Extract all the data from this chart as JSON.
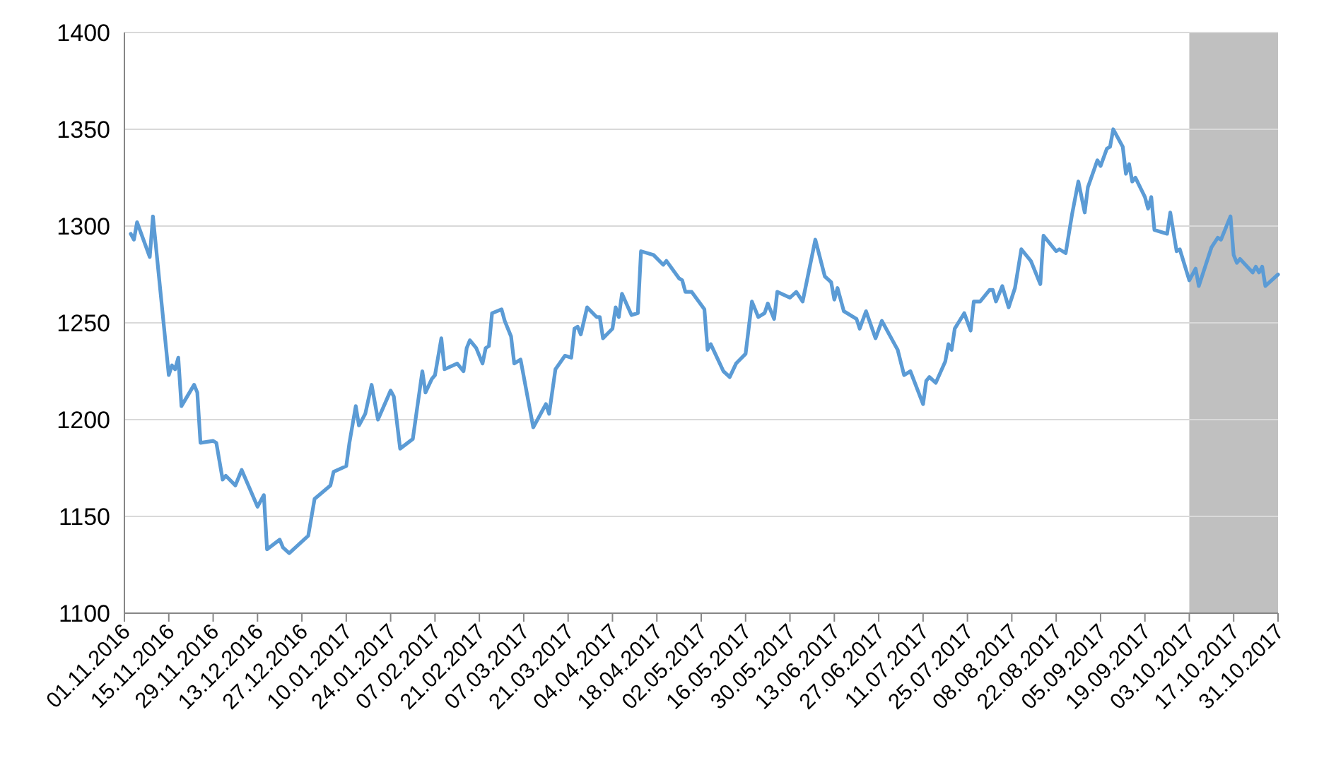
{
  "chart_data": {
    "type": "line",
    "x": [
      "2016-11-03",
      "2016-11-04",
      "2016-11-05",
      "2016-11-09",
      "2016-11-10",
      "2016-11-15",
      "2016-11-16",
      "2016-11-17",
      "2016-11-18",
      "2016-11-19",
      "2016-11-23",
      "2016-11-24",
      "2016-11-25",
      "2016-11-29",
      "2016-11-30",
      "2016-12-02",
      "2016-12-03",
      "2016-12-06",
      "2016-12-08",
      "2016-12-13",
      "2016-12-15",
      "2016-12-16",
      "2016-12-20",
      "2016-12-21",
      "2016-12-23",
      "2016-12-29",
      "2016-12-31",
      "2017-01-05",
      "2017-01-06",
      "2017-01-10",
      "2017-01-11",
      "2017-01-13",
      "2017-01-14",
      "2017-01-16",
      "2017-01-18",
      "2017-01-20",
      "2017-01-24",
      "2017-01-25",
      "2017-01-27",
      "2017-01-31",
      "2017-02-03",
      "2017-02-04",
      "2017-02-06",
      "2017-02-07",
      "2017-02-09",
      "2017-02-10",
      "2017-02-14",
      "2017-02-16",
      "2017-02-17",
      "2017-02-18",
      "2017-02-20",
      "2017-02-22",
      "2017-02-23",
      "2017-02-24",
      "2017-02-25",
      "2017-02-28",
      "2017-03-01",
      "2017-03-03",
      "2017-03-04",
      "2017-03-06",
      "2017-03-10",
      "2017-03-14",
      "2017-03-15",
      "2017-03-17",
      "2017-03-20",
      "2017-03-22",
      "2017-03-23",
      "2017-03-24",
      "2017-03-25",
      "2017-03-27",
      "2017-03-30",
      "2017-03-31",
      "2017-04-01",
      "2017-04-04",
      "2017-04-05",
      "2017-04-06",
      "2017-04-07",
      "2017-04-10",
      "2017-04-12",
      "2017-04-13",
      "2017-04-17",
      "2017-04-20",
      "2017-04-21",
      "2017-04-25",
      "2017-04-26",
      "2017-04-27",
      "2017-04-29",
      "2017-05-03",
      "2017-05-04",
      "2017-05-05",
      "2017-05-09",
      "2017-05-11",
      "2017-05-13",
      "2017-05-16",
      "2017-05-18",
      "2017-05-20",
      "2017-05-22",
      "2017-05-23",
      "2017-05-25",
      "2017-05-26",
      "2017-05-30",
      "2017-06-01",
      "2017-06-03",
      "2017-06-07",
      "2017-06-10",
      "2017-06-12",
      "2017-06-13",
      "2017-06-14",
      "2017-06-16",
      "2017-06-20",
      "2017-06-21",
      "2017-06-23",
      "2017-06-26",
      "2017-06-28",
      "2017-07-03",
      "2017-07-05",
      "2017-07-07",
      "2017-07-11",
      "2017-07-12",
      "2017-07-13",
      "2017-07-15",
      "2017-07-18",
      "2017-07-19",
      "2017-07-20",
      "2017-07-21",
      "2017-07-24",
      "2017-07-26",
      "2017-07-27",
      "2017-07-29",
      "2017-08-01",
      "2017-08-02",
      "2017-08-03",
      "2017-08-05",
      "2017-08-07",
      "2017-08-09",
      "2017-08-11",
      "2017-08-14",
      "2017-08-17",
      "2017-08-18",
      "2017-08-22",
      "2017-08-23",
      "2017-08-25",
      "2017-08-27",
      "2017-08-29",
      "2017-08-31",
      "2017-09-01",
      "2017-09-04",
      "2017-09-05",
      "2017-09-07",
      "2017-09-08",
      "2017-09-09",
      "2017-09-12",
      "2017-09-13",
      "2017-09-14",
      "2017-09-15",
      "2017-09-16",
      "2017-09-19",
      "2017-09-20",
      "2017-09-21",
      "2017-09-22",
      "2017-09-26",
      "2017-09-27",
      "2017-09-29",
      "2017-09-30",
      "2017-10-03",
      "2017-10-05",
      "2017-10-06",
      "2017-10-10",
      "2017-10-12",
      "2017-10-13",
      "2017-10-16",
      "2017-10-17",
      "2017-10-18",
      "2017-10-19",
      "2017-10-23",
      "2017-10-24",
      "2017-10-25",
      "2017-10-26",
      "2017-10-27",
      "2017-10-31"
    ],
    "series": [
      {
        "color": "#5b9bd5",
        "values": [
          1296,
          1293,
          1302,
          1284,
          1305,
          1223,
          1228,
          1226,
          1232,
          1207,
          1218,
          1214,
          1188,
          1189,
          1188,
          1169,
          1171,
          1166,
          1174,
          1155,
          1161,
          1133,
          1138,
          1134,
          1131,
          1140,
          1159,
          1166,
          1173,
          1176,
          1188,
          1207,
          1197,
          1203,
          1218,
          1200,
          1215,
          1212,
          1185,
          1190,
          1225,
          1214,
          1221,
          1223,
          1242,
          1226,
          1229,
          1225,
          1237,
          1241,
          1237,
          1229,
          1237,
          1238,
          1255,
          1257,
          1251,
          1243,
          1229,
          1231,
          1196,
          1208,
          1203,
          1226,
          1233,
          1232,
          1247,
          1248,
          1244,
          1258,
          1253,
          1253,
          1242,
          1247,
          1258,
          1253,
          1265,
          1254,
          1255,
          1287,
          1285,
          1280,
          1282,
          1273,
          1272,
          1266,
          1266,
          1257,
          1236,
          1239,
          1225,
          1222,
          1229,
          1234,
          1261,
          1253,
          1255,
          1260,
          1252,
          1266,
          1263,
          1266,
          1261,
          1293,
          1274,
          1271,
          1262,
          1268,
          1256,
          1252,
          1247,
          1256,
          1242,
          1251,
          1236,
          1223,
          1225,
          1208,
          1220,
          1222,
          1219,
          1230,
          1239,
          1236,
          1247,
          1255,
          1246,
          1261,
          1261,
          1267,
          1267,
          1261,
          1269,
          1258,
          1268,
          1288,
          1282,
          1270,
          1295,
          1287,
          1288,
          1286,
          1306,
          1323,
          1307,
          1320,
          1334,
          1331,
          1340,
          1341,
          1350,
          1341,
          1327,
          1332,
          1323,
          1325,
          1315,
          1309,
          1315,
          1298,
          1296,
          1307,
          1287,
          1288,
          1272,
          1278,
          1269,
          1289,
          1294,
          1293,
          1305,
          1285,
          1281,
          1283,
          1276,
          1279,
          1276,
          1279,
          1269,
          1275
        ]
      }
    ],
    "xlim": [
      "2016-11-01",
      "2017-10-31"
    ],
    "xticks": [
      {
        "value": "2016-11-01",
        "label": "01.11.2016"
      },
      {
        "value": "2016-11-15",
        "label": "15.11.2016"
      },
      {
        "value": "2016-11-29",
        "label": "29.11.2016"
      },
      {
        "value": "2016-12-13",
        "label": "13.12.2016"
      },
      {
        "value": "2016-12-27",
        "label": "27.12.2016"
      },
      {
        "value": "2017-01-10",
        "label": "10.01.2017"
      },
      {
        "value": "2017-01-24",
        "label": "24.01.2017"
      },
      {
        "value": "2017-02-07",
        "label": "07.02.2017"
      },
      {
        "value": "2017-02-21",
        "label": "21.02.2017"
      },
      {
        "value": "2017-03-07",
        "label": "07.03.2017"
      },
      {
        "value": "2017-03-21",
        "label": "21.03.2017"
      },
      {
        "value": "2017-04-04",
        "label": "04.04.2017"
      },
      {
        "value": "2017-04-18",
        "label": "18.04.2017"
      },
      {
        "value": "2017-05-02",
        "label": "02.05.2017"
      },
      {
        "value": "2017-05-16",
        "label": "16.05.2017"
      },
      {
        "value": "2017-05-30",
        "label": "30.05.2017"
      },
      {
        "value": "2017-06-13",
        "label": "13.06.2017"
      },
      {
        "value": "2017-06-27",
        "label": "27.06.2017"
      },
      {
        "value": "2017-07-11",
        "label": "11.07.2017"
      },
      {
        "value": "2017-07-25",
        "label": "25.07.2017"
      },
      {
        "value": "2017-08-08",
        "label": "08.08.2017"
      },
      {
        "value": "2017-08-22",
        "label": "22.08.2017"
      },
      {
        "value": "2017-09-05",
        "label": "05.09.2017"
      },
      {
        "value": "2017-09-19",
        "label": "19.09.2017"
      },
      {
        "value": "2017-10-03",
        "label": "03.10.2017"
      },
      {
        "value": "2017-10-17",
        "label": "17.10.2017"
      },
      {
        "value": "2017-10-31",
        "label": "31.10.2017"
      }
    ],
    "ylim": [
      1100,
      1400
    ],
    "yticks": [
      1100,
      1150,
      1200,
      1250,
      1300,
      1350,
      1400
    ],
    "bands": [
      {
        "axis": "x",
        "from": "2017-10-03",
        "to": "2017-10-31",
        "color": "#c0c0c0"
      }
    ],
    "grid": "y",
    "marker": "none",
    "line_style": "solid"
  }
}
